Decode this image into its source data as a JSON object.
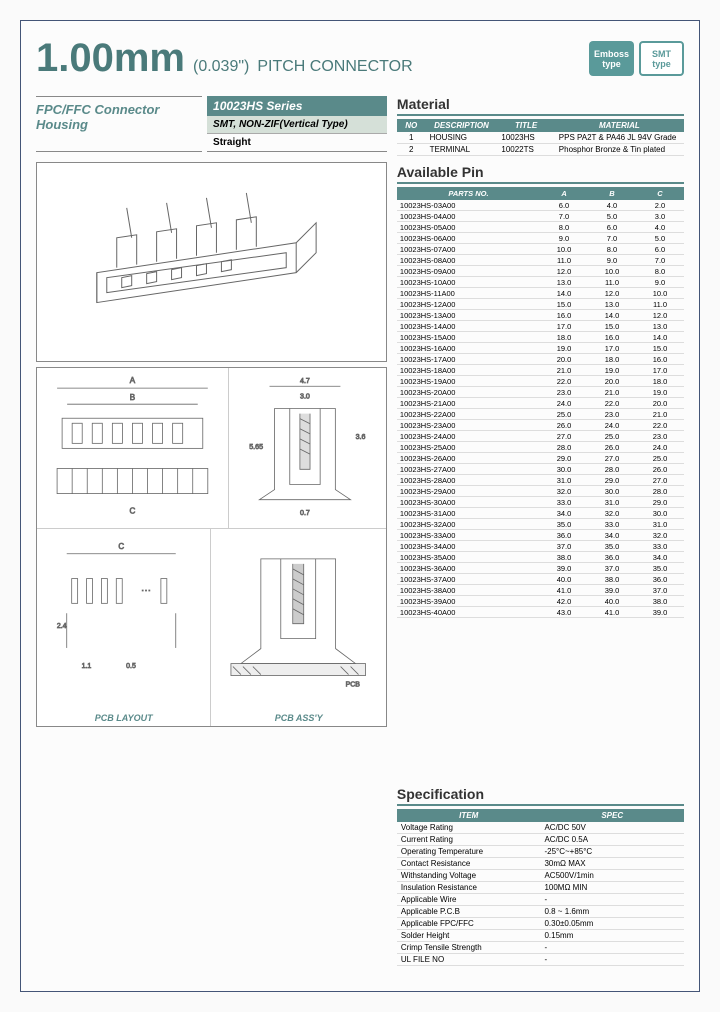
{
  "header": {
    "main_size": "1.00mm",
    "sub_size": "(0.039\")",
    "pitch_label": "PITCH CONNECTOR",
    "badge1_line1": "Emboss",
    "badge1_line2": "type",
    "badge2_line1": "SMT",
    "badge2_line2": "type"
  },
  "series": {
    "category_line1": "FPC/FFC Connector",
    "category_line2": "Housing",
    "series_name": "10023HS Series",
    "type": "SMT, NON-ZIF(Vertical Type)",
    "variant": "Straight"
  },
  "material": {
    "title": "Material",
    "headers": [
      "NO",
      "DESCRIPTION",
      "TITLE",
      "MATERIAL"
    ],
    "rows": [
      [
        "1",
        "HOUSING",
        "10023HS",
        "PPS PA2T & PA46 JL 94V Grade"
      ],
      [
        "2",
        "TERMINAL",
        "10022TS",
        "Phosphor Bronze & Tin plated"
      ]
    ]
  },
  "available_pin": {
    "title": "Available Pin",
    "headers": [
      "PARTS NO.",
      "A",
      "B",
      "C"
    ],
    "rows": [
      [
        "10023HS-03A00",
        "6.0",
        "4.0",
        "2.0"
      ],
      [
        "10023HS-04A00",
        "7.0",
        "5.0",
        "3.0"
      ],
      [
        "10023HS-05A00",
        "8.0",
        "6.0",
        "4.0"
      ],
      [
        "10023HS-06A00",
        "9.0",
        "7.0",
        "5.0"
      ],
      [
        "10023HS-07A00",
        "10.0",
        "8.0",
        "6.0"
      ],
      [
        "10023HS-08A00",
        "11.0",
        "9.0",
        "7.0"
      ],
      [
        "10023HS-09A00",
        "12.0",
        "10.0",
        "8.0"
      ],
      [
        "10023HS-10A00",
        "13.0",
        "11.0",
        "9.0"
      ],
      [
        "10023HS-11A00",
        "14.0",
        "12.0",
        "10.0"
      ],
      [
        "10023HS-12A00",
        "15.0",
        "13.0",
        "11.0"
      ],
      [
        "10023HS-13A00",
        "16.0",
        "14.0",
        "12.0"
      ],
      [
        "10023HS-14A00",
        "17.0",
        "15.0",
        "13.0"
      ],
      [
        "10023HS-15A00",
        "18.0",
        "16.0",
        "14.0"
      ],
      [
        "10023HS-16A00",
        "19.0",
        "17.0",
        "15.0"
      ],
      [
        "10023HS-17A00",
        "20.0",
        "18.0",
        "16.0"
      ],
      [
        "10023HS-18A00",
        "21.0",
        "19.0",
        "17.0"
      ],
      [
        "10023HS-19A00",
        "22.0",
        "20.0",
        "18.0"
      ],
      [
        "10023HS-20A00",
        "23.0",
        "21.0",
        "19.0"
      ],
      [
        "10023HS-21A00",
        "24.0",
        "22.0",
        "20.0"
      ],
      [
        "10023HS-22A00",
        "25.0",
        "23.0",
        "21.0"
      ],
      [
        "10023HS-23A00",
        "26.0",
        "24.0",
        "22.0"
      ],
      [
        "10023HS-24A00",
        "27.0",
        "25.0",
        "23.0"
      ],
      [
        "10023HS-25A00",
        "28.0",
        "26.0",
        "24.0"
      ],
      [
        "10023HS-26A00",
        "29.0",
        "27.0",
        "25.0"
      ],
      [
        "10023HS-27A00",
        "30.0",
        "28.0",
        "26.0"
      ],
      [
        "10023HS-28A00",
        "31.0",
        "29.0",
        "27.0"
      ],
      [
        "10023HS-29A00",
        "32.0",
        "30.0",
        "28.0"
      ],
      [
        "10023HS-30A00",
        "33.0",
        "31.0",
        "29.0"
      ],
      [
        "10023HS-31A00",
        "34.0",
        "32.0",
        "30.0"
      ],
      [
        "10023HS-32A00",
        "35.0",
        "33.0",
        "31.0"
      ],
      [
        "10023HS-33A00",
        "36.0",
        "34.0",
        "32.0"
      ],
      [
        "10023HS-34A00",
        "37.0",
        "35.0",
        "33.0"
      ],
      [
        "10023HS-35A00",
        "38.0",
        "36.0",
        "34.0"
      ],
      [
        "10023HS-36A00",
        "39.0",
        "37.0",
        "35.0"
      ],
      [
        "10023HS-37A00",
        "40.0",
        "38.0",
        "36.0"
      ],
      [
        "10023HS-38A00",
        "41.0",
        "39.0",
        "37.0"
      ],
      [
        "10023HS-39A00",
        "42.0",
        "40.0",
        "38.0"
      ],
      [
        "10023HS-40A00",
        "43.0",
        "41.0",
        "39.0"
      ]
    ]
  },
  "specification": {
    "title": "Specification",
    "headers": [
      "ITEM",
      "SPEC"
    ],
    "rows": [
      [
        "Voltage Rating",
        "AC/DC 50V"
      ],
      [
        "Current Rating",
        "AC/DC 0.5A"
      ],
      [
        "Operating Temperature",
        "-25°C~+85°C"
      ],
      [
        "Contact Resistance",
        "30mΩ MAX"
      ],
      [
        "Withstanding Voltage",
        "AC500V/1min"
      ],
      [
        "Insulation Resistance",
        "100MΩ MIN"
      ],
      [
        "Applicable Wire",
        "-"
      ],
      [
        "Applicable P.C.B",
        "0.8 ~ 1.6mm"
      ],
      [
        "Applicable FPC/FFC",
        "0.30±0.05mm"
      ],
      [
        "Solder Height",
        "0.15mm"
      ],
      [
        "Crimp Tensile Strength",
        "-"
      ],
      [
        "UL FILE NO",
        "-"
      ]
    ]
  },
  "diagrams": {
    "pcb_layout_label": "PCB LAYOUT",
    "pcb_assy_label": "PCB ASS'Y",
    "dim_a": "A",
    "dim_b": "B",
    "dim_c": "C",
    "dim_47": "4.7",
    "dim_30": "3.0",
    "dim_05": "0.5",
    "dim_36": "3.6",
    "dim_565": "5.65",
    "dim_07": "0.7",
    "dim_pcb": "PCB",
    "dim_24": "2.4",
    "dim_11": "1.1"
  },
  "colors": {
    "teal": "#5a8a8a",
    "light_teal": "#d5e0d8",
    "border": "#888888",
    "text": "#333333"
  }
}
